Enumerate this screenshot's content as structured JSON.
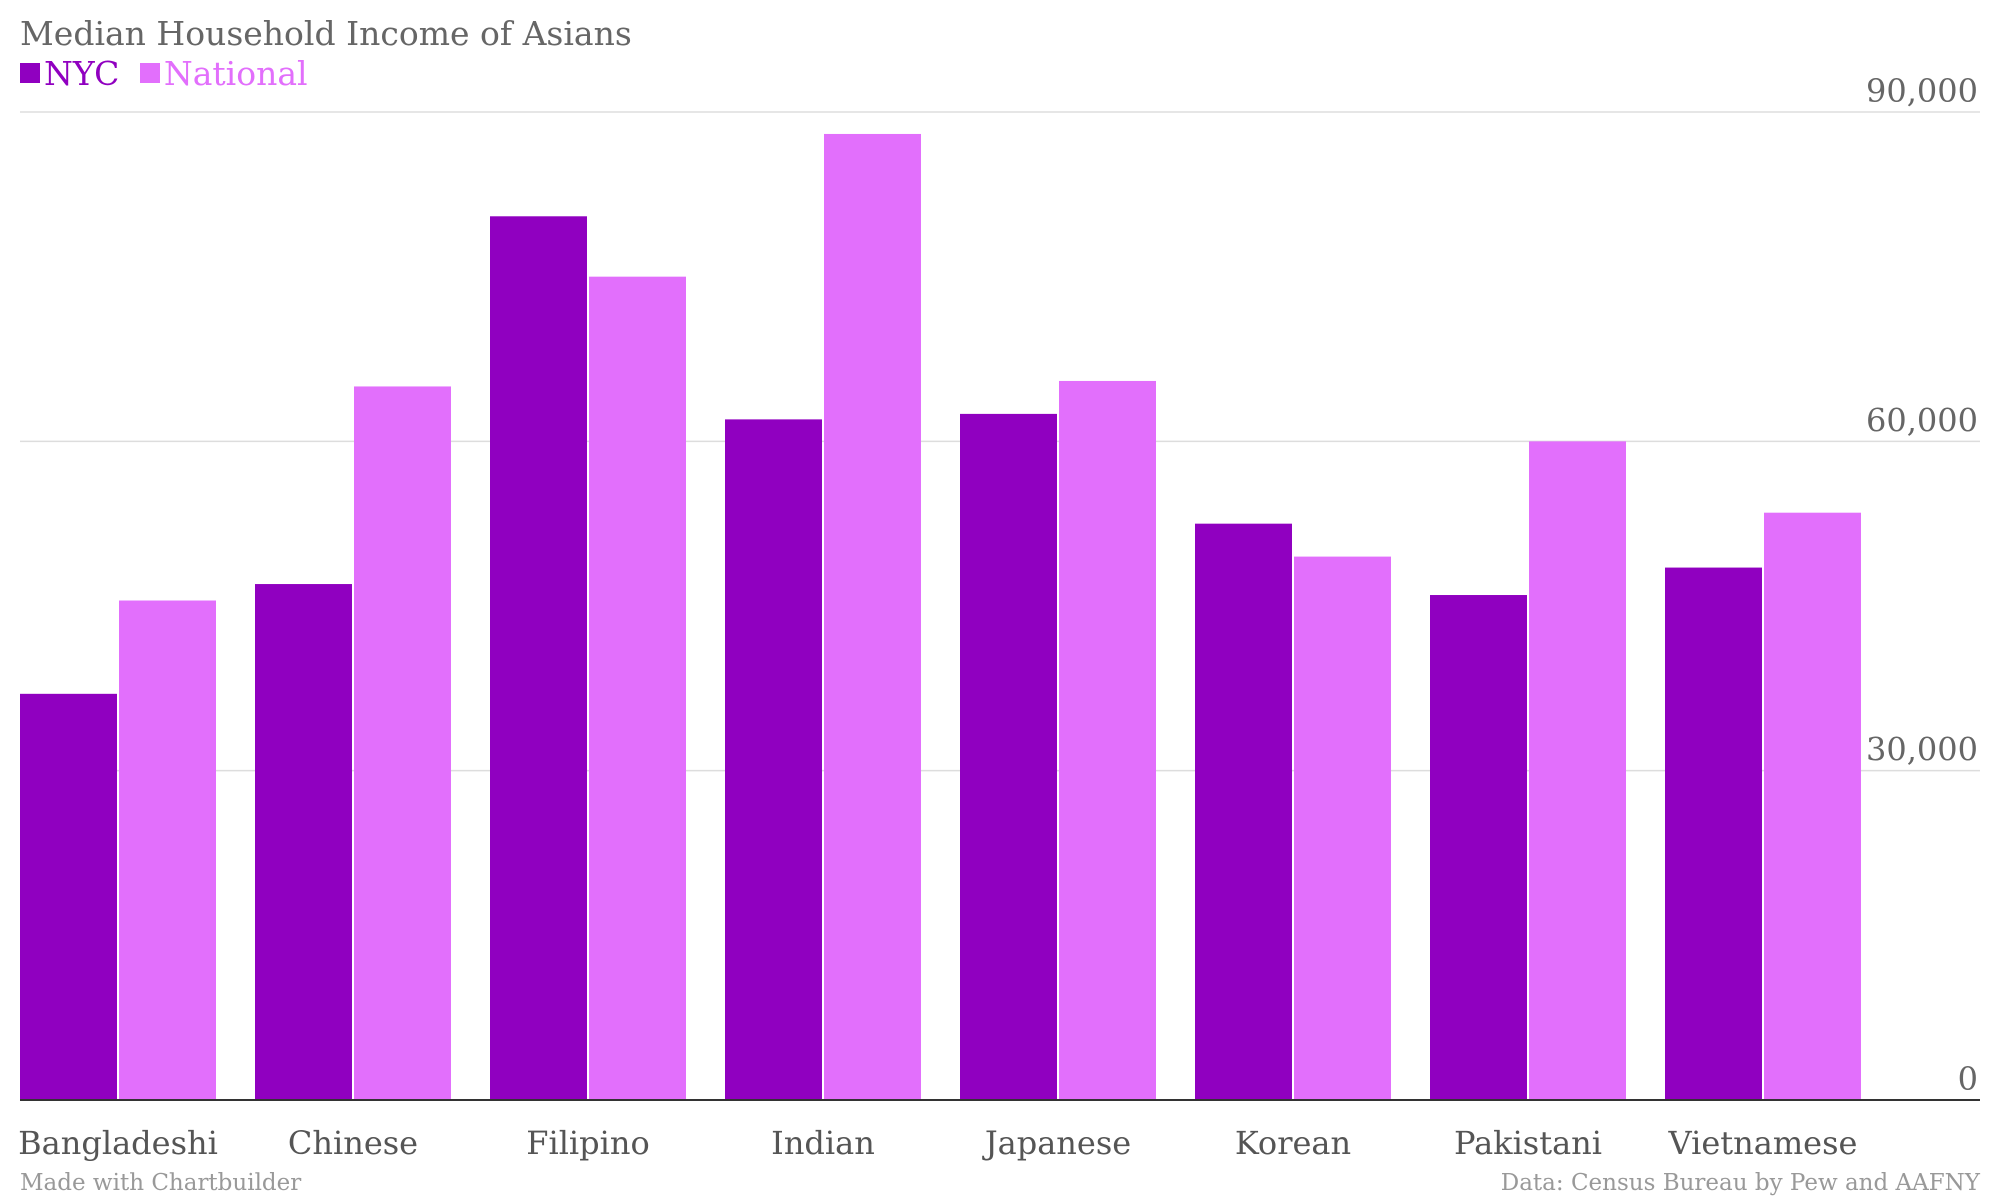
{
  "chart_data": {
    "type": "bar",
    "title": "Median Household Income of Asians",
    "categories": [
      "Bangladeshi",
      "Chinese",
      "Filipino",
      "Indian",
      "Japanese",
      "Korean",
      "Pakistani",
      "Vietnamese"
    ],
    "series": [
      {
        "name": "NYC",
        "color": "#9000c0",
        "values": [
          37000,
          47000,
          80500,
          62000,
          62500,
          52500,
          46000,
          48500
        ]
      },
      {
        "name": "National",
        "color": "#e26ffc",
        "values": [
          45500,
          65000,
          75000,
          88000,
          65500,
          49500,
          60000,
          53500
        ]
      }
    ],
    "y_ticks": [
      "0",
      "30,000",
      "60,000",
      "90,000"
    ],
    "y_tick_values": [
      0,
      30000,
      60000,
      90000
    ],
    "ylim": [
      0,
      90000
    ],
    "xlabel": "",
    "ylabel": "",
    "grid": true,
    "y_axis_side": "right",
    "legend_position": "top-left"
  },
  "footer": {
    "credit": "Made with Chartbuilder",
    "source": "Data: Census Bureau by Pew and AAFNY"
  }
}
